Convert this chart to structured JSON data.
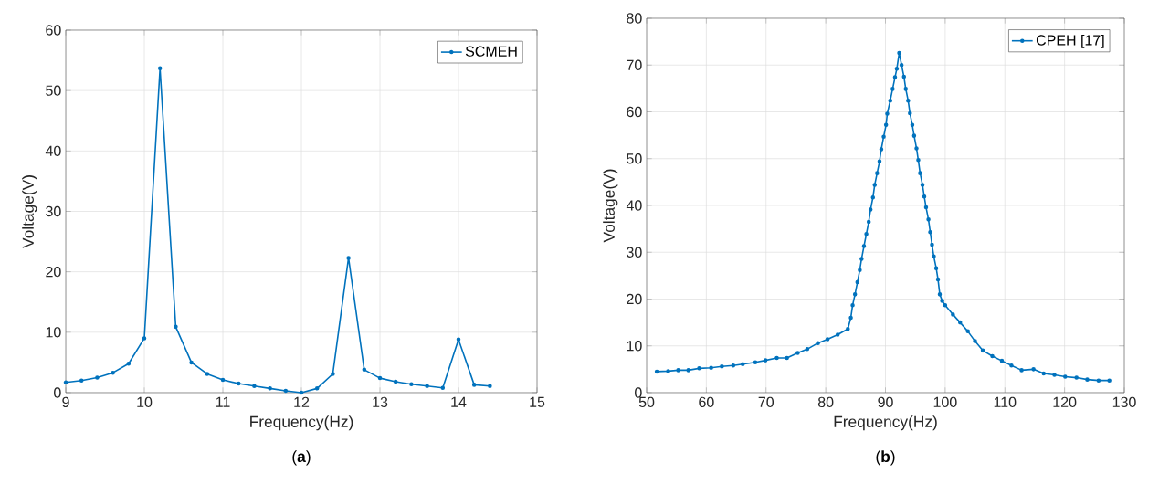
{
  "chart_data": [
    {
      "type": "line",
      "xlabel": "Frequency(Hz)",
      "ylabel": "Voltage(V)",
      "annotations": [
        "(**a**)"
      ],
      "xlim": [
        9,
        15
      ],
      "ylim": [
        0,
        60
      ],
      "xticks": [
        9,
        10,
        11,
        12,
        13,
        14,
        15
      ],
      "yticks": [
        0,
        10,
        20,
        30,
        40,
        50,
        60
      ],
      "grid": true,
      "legend": "top right",
      "marker": "circle",
      "line_style": "solid",
      "series": [
        {
          "name": "SCMEH",
          "color": "#0072bd",
          "x": [
            9,
            9.2,
            9.4,
            9.6,
            9.8,
            10,
            10.2,
            10.4,
            10.6,
            10.8,
            11,
            11.2,
            11.4,
            11.6,
            11.8,
            12,
            12.2,
            12.4,
            12.6,
            12.8,
            13,
            13.2,
            13.4,
            13.6,
            13.8,
            14,
            14.2,
            14.4
          ],
          "values": [
            1.7,
            2.0,
            2.5,
            3.3,
            4.8,
            9.0,
            53.7,
            10.9,
            5.0,
            3.1,
            2.1,
            1.5,
            1.1,
            0.7,
            0.3,
            0.0,
            0.7,
            3.1,
            22.3,
            3.8,
            2.4,
            1.8,
            1.4,
            1.1,
            0.8,
            8.8,
            1.3,
            1.1
          ]
        }
      ]
    },
    {
      "type": "line",
      "xlabel": "Frequency(Hz)",
      "ylabel": "Voltage(V)",
      "annotations": [
        "(**b**)"
      ],
      "xlim": [
        50,
        130
      ],
      "ylim": [
        0,
        80
      ],
      "xticks": [
        50,
        60,
        70,
        80,
        90,
        100,
        110,
        120,
        130
      ],
      "yticks": [
        0,
        10,
        20,
        30,
        40,
        50,
        60,
        70,
        80
      ],
      "grid": true,
      "legend": "top right",
      "marker": "circle",
      "line_style": "solid",
      "series": [
        {
          "name": "CPEH [17]",
          "color": "#0072bd",
          "x": [
            51.7,
            53.6,
            55.3,
            57.0,
            58.8,
            60.8,
            62.6,
            64.5,
            66.1,
            68.2,
            69.9,
            71.8,
            73.5,
            75.3,
            76.9,
            78.7,
            80.3,
            82.0,
            83.7,
            84.2,
            84.5,
            84.9,
            85.3,
            85.7,
            86.0,
            86.4,
            86.8,
            87.2,
            87.5,
            87.9,
            88.2,
            88.6,
            89.0,
            89.3,
            89.7,
            90.1,
            90.3,
            90.8,
            91.2,
            91.6,
            91.9,
            92.3,
            92.7,
            93.1,
            93.4,
            93.8,
            94.1,
            94.5,
            94.8,
            95.2,
            95.5,
            95.8,
            96.2,
            96.5,
            96.8,
            97.2,
            97.5,
            97.8,
            98.1,
            98.5,
            98.8,
            99.1,
            99.5,
            100.0,
            101.3,
            102.5,
            103.8,
            105.0,
            106.3,
            107.9,
            109.5,
            111.1,
            112.8,
            114.8,
            116.5,
            118.3,
            120.1,
            122.0,
            123.8,
            125.7,
            127.5
          ],
          "values": [
            4.5,
            4.6,
            4.8,
            4.8,
            5.2,
            5.3,
            5.6,
            5.8,
            6.1,
            6.5,
            6.9,
            7.4,
            7.4,
            8.5,
            9.3,
            10.6,
            11.4,
            12.4,
            13.6,
            16.0,
            18.7,
            21.0,
            23.6,
            26.2,
            28.6,
            31.3,
            33.9,
            36.5,
            39.1,
            41.7,
            44.4,
            46.9,
            49.4,
            52.0,
            54.7,
            57.2,
            59.6,
            62.4,
            64.9,
            67.4,
            69.2,
            72.6,
            70.0,
            67.5,
            64.9,
            62.4,
            59.7,
            57.2,
            54.9,
            52.2,
            49.7,
            46.9,
            44.4,
            41.9,
            39.6,
            37.0,
            34.3,
            31.6,
            29.1,
            26.6,
            24.2,
            21.0,
            19.6,
            18.7,
            16.7,
            15.0,
            13.1,
            11.0,
            9.0,
            7.8,
            6.8,
            5.8,
            4.8,
            5.0,
            4.1,
            3.8,
            3.4,
            3.2,
            2.8,
            2.6,
            2.6
          ]
        }
      ]
    }
  ]
}
